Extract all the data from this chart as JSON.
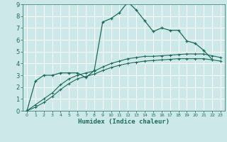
{
  "xlabel": "Humidex (Indice chaleur)",
  "bg_color": "#cce8e8",
  "grid_color": "#ffffff",
  "line_color": "#1a6b5a",
  "xlim": [
    -0.5,
    23.5
  ],
  "ylim": [
    0,
    9
  ],
  "xticks": [
    0,
    1,
    2,
    3,
    4,
    5,
    6,
    7,
    8,
    9,
    10,
    11,
    12,
    13,
    14,
    15,
    16,
    17,
    18,
    19,
    20,
    21,
    22,
    23
  ],
  "yticks": [
    0,
    1,
    2,
    3,
    4,
    5,
    6,
    7,
    8,
    9
  ],
  "series1_x": [
    0,
    1,
    2,
    3,
    4,
    5,
    6,
    7,
    8,
    9,
    10,
    11,
    12,
    13,
    14,
    15,
    16,
    17,
    18,
    19,
    20,
    21,
    22
  ],
  "series1_y": [
    0.0,
    2.5,
    3.0,
    3.0,
    3.2,
    3.2,
    3.2,
    2.8,
    3.4,
    7.5,
    7.8,
    8.3,
    9.2,
    8.5,
    7.6,
    6.7,
    7.0,
    6.8,
    6.8,
    5.9,
    5.7,
    5.1,
    4.35
  ],
  "series2_x": [
    0,
    1,
    2,
    3,
    4,
    5,
    6,
    7,
    8,
    9,
    10,
    11,
    12,
    13,
    14,
    15,
    16,
    17,
    18,
    19,
    20,
    21,
    22,
    23
  ],
  "series2_y": [
    0.0,
    0.5,
    1.0,
    1.5,
    2.2,
    2.7,
    3.0,
    3.2,
    3.35,
    3.7,
    4.0,
    4.2,
    4.4,
    4.5,
    4.6,
    4.6,
    4.65,
    4.7,
    4.75,
    4.8,
    4.8,
    4.8,
    4.65,
    4.5
  ],
  "series3_x": [
    0,
    1,
    2,
    3,
    4,
    5,
    6,
    7,
    8,
    9,
    10,
    11,
    12,
    13,
    14,
    15,
    16,
    17,
    18,
    19,
    20,
    21,
    22,
    23
  ],
  "series3_y": [
    0.0,
    0.3,
    0.7,
    1.2,
    1.8,
    2.3,
    2.7,
    2.9,
    3.1,
    3.4,
    3.65,
    3.85,
    4.0,
    4.1,
    4.2,
    4.25,
    4.3,
    4.35,
    4.4,
    4.4,
    4.4,
    4.4,
    4.3,
    4.2
  ]
}
